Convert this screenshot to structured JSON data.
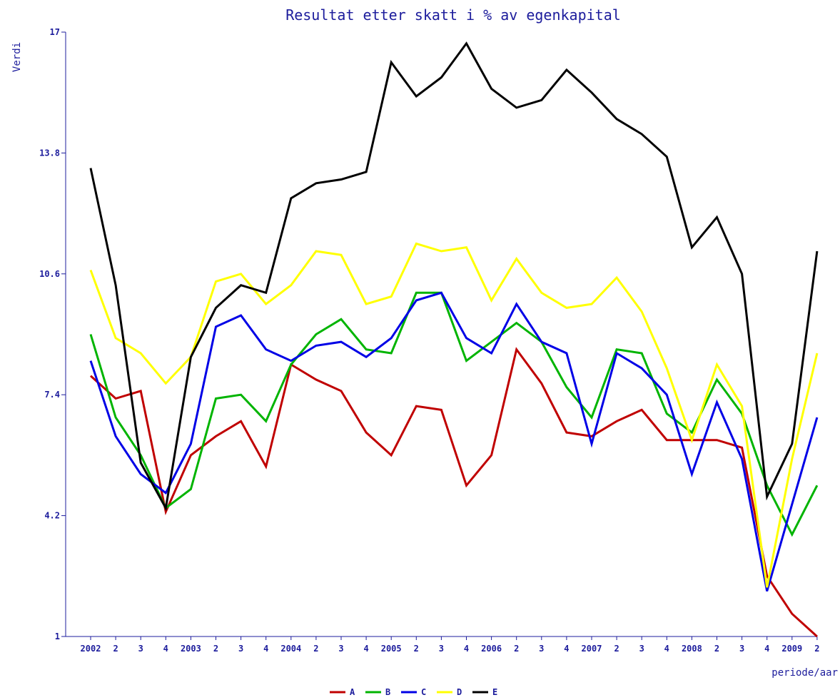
{
  "chart_data": {
    "type": "line",
    "title": "Resultat etter skatt i % av egenkapital",
    "ylabel": "Verdi",
    "xlabel": "periode/aar",
    "ylim": [
      1,
      17
    ],
    "yticks": [
      "17",
      "13.8",
      "10.6",
      "7.4",
      "4.2",
      "1"
    ],
    "ytick_values": [
      17,
      13.8,
      10.6,
      7.4,
      4.2,
      1
    ],
    "categories": [
      "2002",
      "2",
      "3",
      "4",
      "2003",
      "2",
      "3",
      "4",
      "2004",
      "2",
      "3",
      "4",
      "2005",
      "2",
      "3",
      "4",
      "2006",
      "2",
      "3",
      "4",
      "2007",
      "2",
      "3",
      "4",
      "2008",
      "2",
      "3",
      "4",
      "2009",
      "2"
    ],
    "grid": false,
    "legend_position": "bottom",
    "series": [
      {
        "name": "A",
        "color": "#c00000",
        "values": [
          7.9,
          7.3,
          7.5,
          4.3,
          5.8,
          6.3,
          6.7,
          5.5,
          8.2,
          7.8,
          7.5,
          6.4,
          5.8,
          7.1,
          7.0,
          5.0,
          5.8,
          8.6,
          7.7,
          6.4,
          6.3,
          6.7,
          7.0,
          6.2,
          6.2,
          6.2,
          6.0,
          2.6,
          1.6,
          1.0
        ]
      },
      {
        "name": "B",
        "color": "#00b400",
        "values": [
          9.0,
          6.8,
          5.8,
          4.4,
          4.9,
          7.3,
          7.4,
          6.7,
          8.2,
          9.0,
          9.4,
          8.6,
          8.5,
          10.1,
          10.1,
          8.3,
          8.8,
          9.3,
          8.8,
          7.6,
          6.8,
          8.6,
          8.5,
          6.9,
          6.4,
          7.8,
          6.9,
          5.0,
          3.7,
          5.0
        ]
      },
      {
        "name": "C",
        "color": "#0000e6",
        "values": [
          8.3,
          6.3,
          5.3,
          4.8,
          6.1,
          9.2,
          9.5,
          8.6,
          8.3,
          8.7,
          8.8,
          8.4,
          8.9,
          9.9,
          10.1,
          8.9,
          8.5,
          9.8,
          8.8,
          8.5,
          6.1,
          8.5,
          8.1,
          7.4,
          5.3,
          7.2,
          5.7,
          2.2,
          4.5,
          6.8
        ]
      },
      {
        "name": "D",
        "color": "#ffff00",
        "values": [
          10.7,
          8.9,
          8.5,
          7.7,
          8.4,
          10.4,
          10.6,
          9.8,
          10.3,
          11.2,
          11.1,
          9.8,
          10.0,
          11.4,
          11.2,
          11.3,
          9.9,
          11.0,
          10.1,
          9.7,
          9.8,
          10.5,
          9.6,
          8.1,
          6.2,
          8.2,
          7.1,
          2.3,
          5.7,
          8.5
        ]
      },
      {
        "name": "E",
        "color": "#000000",
        "values": [
          13.4,
          10.3,
          5.6,
          4.4,
          8.4,
          9.7,
          10.3,
          10.1,
          12.6,
          13.0,
          13.1,
          13.3,
          16.2,
          15.3,
          15.8,
          16.7,
          15.5,
          15.0,
          15.2,
          16.0,
          15.4,
          14.7,
          14.3,
          13.7,
          11.3,
          12.1,
          10.6,
          4.7,
          6.1,
          11.2
        ]
      }
    ]
  }
}
